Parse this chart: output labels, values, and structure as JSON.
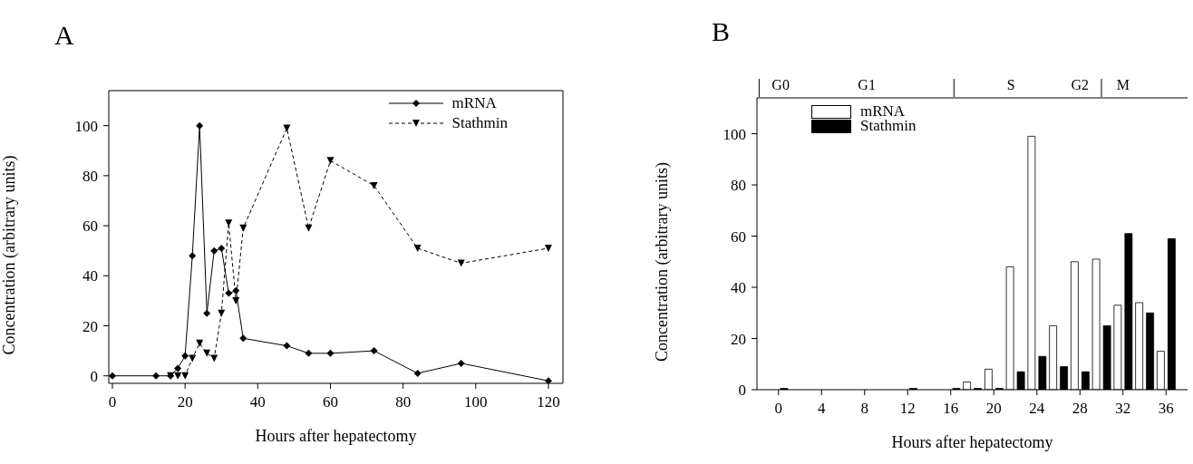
{
  "chart_data": [
    {
      "type": "line",
      "title": "A",
      "xlabel": "Hours after hepatectomy",
      "ylabel": "Concentration (arbitrary units)",
      "xlim": [
        -1,
        124
      ],
      "ylim": [
        -3,
        114
      ],
      "xticks": [
        0,
        20,
        40,
        60,
        80,
        100,
        120
      ],
      "yticks": [
        0,
        20,
        40,
        60,
        80,
        100
      ],
      "legend": "top right",
      "series": [
        {
          "name": "mRNA",
          "color": "#000000",
          "marker": "diamond",
          "line_style": "solid",
          "x": [
            0,
            12,
            16,
            18,
            20,
            22,
            24,
            26,
            28,
            30,
            32,
            34,
            36,
            48,
            54,
            60,
            72,
            84,
            96,
            120
          ],
          "values": [
            0,
            0,
            0,
            3,
            8,
            48,
            100,
            25,
            50,
            51,
            33,
            34,
            15,
            12,
            9,
            9,
            10,
            1,
            5,
            -2
          ]
        },
        {
          "name": "Stathmin",
          "color": "#000000",
          "marker": "triangle",
          "line_style": "dashed",
          "x": [
            16,
            18,
            20,
            22,
            24,
            26,
            28,
            30,
            32,
            34,
            36,
            48,
            54,
            60,
            72,
            84,
            96,
            120
          ],
          "values": [
            0,
            0,
            0,
            7,
            13,
            9,
            7,
            25,
            61,
            30,
            59,
            99,
            59,
            86,
            76,
            51,
            45,
            51
          ]
        }
      ]
    },
    {
      "type": "bar",
      "title": "B",
      "xlabel": "Hours after hepatectomy",
      "ylabel": "Concentration (arbitrary units)",
      "xlim": [
        -2,
        38
      ],
      "ylim": [
        0,
        114
      ],
      "xticks": [
        0,
        4,
        8,
        12,
        16,
        20,
        24,
        28,
        32,
        36
      ],
      "yticks": [
        0,
        20,
        40,
        60,
        80,
        100
      ],
      "legend": "top left",
      "annotations": [
        "G0",
        "G1",
        "S",
        "G2",
        "M"
      ],
      "x": [
        0,
        12,
        16,
        18,
        20,
        22,
        24,
        26,
        28,
        30,
        32,
        34,
        36
      ],
      "series": [
        {
          "name": "mRNA",
          "color": "#ffffff",
          "values": [
            0,
            0,
            0,
            3,
            8,
            48,
            99,
            25,
            50,
            51,
            33,
            34,
            15
          ]
        },
        {
          "name": "Stathmin",
          "color": "#000000",
          "values": [
            0.5,
            0.5,
            0.5,
            0.5,
            0.5,
            7,
            13,
            9,
            7,
            25,
            61,
            30,
            59
          ]
        }
      ]
    }
  ]
}
